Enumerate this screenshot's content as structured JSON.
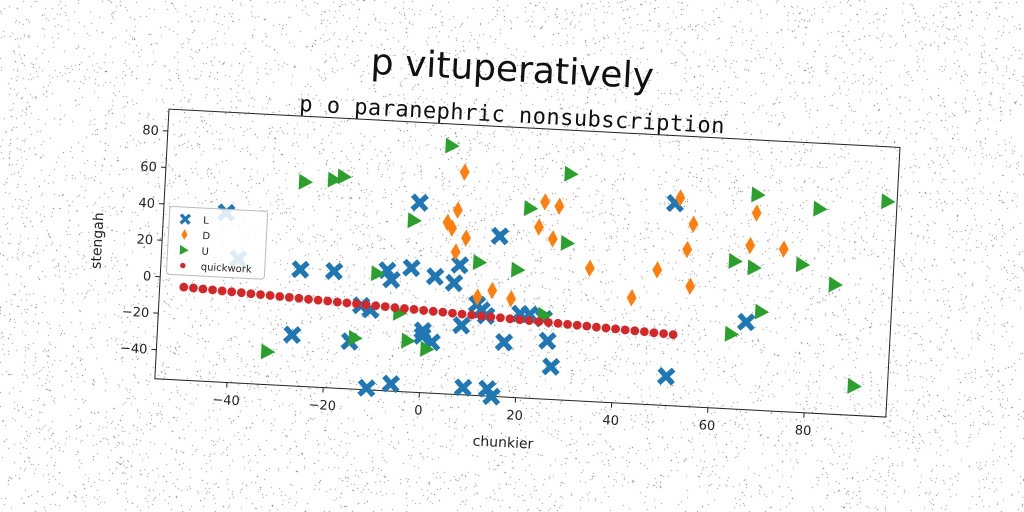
{
  "chart_data": {
    "type": "scatter",
    "title": "p vituperatively",
    "subtitle": "p o paranephric nonsubscription",
    "xlabel": "chunkier",
    "ylabel": "stengah",
    "xlim": [
      -55,
      97
    ],
    "ylim": [
      -56,
      92
    ],
    "xticks": [
      -40,
      -20,
      0,
      20,
      40,
      60,
      80
    ],
    "yticks": [
      -40,
      -20,
      0,
      20,
      40,
      60,
      80
    ],
    "grid": false,
    "legend": "upper-left",
    "series": [
      {
        "name": "L",
        "marker": "x",
        "color": "#1f77b4",
        "points": [
          [
            -42,
            37
          ],
          [
            -39,
            12
          ],
          [
            -26,
            8
          ],
          [
            -19,
            8
          ],
          [
            -13,
            -10
          ],
          [
            -15,
            -30
          ],
          [
            -11,
            -12
          ],
          [
            -8,
            10
          ],
          [
            -7,
            5
          ],
          [
            -3,
            12
          ],
          [
            -2,
            48
          ],
          [
            0,
            -25
          ],
          [
            0,
            -22
          ],
          [
            2,
            -28
          ],
          [
            2,
            8
          ],
          [
            6,
            5
          ],
          [
            7,
            15
          ],
          [
            8,
            -18
          ],
          [
            9,
            -52
          ],
          [
            11,
            -6
          ],
          [
            12,
            -9
          ],
          [
            13,
            -12
          ],
          [
            14,
            -52
          ],
          [
            15,
            -56
          ],
          [
            15,
            32
          ],
          [
            17,
            -26
          ],
          [
            20,
            -10
          ],
          [
            22,
            -10
          ],
          [
            25,
            -12
          ],
          [
            26,
            -24
          ],
          [
            27,
            -38
          ],
          [
            51,
            55
          ],
          [
            51,
            -40
          ],
          [
            67,
            -8
          ],
          [
            -27,
            -28
          ],
          [
            -11,
            -55
          ],
          [
            -6,
            -52
          ]
        ]
      },
      {
        "name": "D",
        "marker": "diamond",
        "color": "#ff7f0e",
        "points": [
          [
            4,
            38
          ],
          [
            5,
            35
          ],
          [
            6,
            45
          ],
          [
            7,
            66
          ],
          [
            8,
            30
          ],
          [
            6,
            22
          ],
          [
            11,
            -2
          ],
          [
            14,
            2
          ],
          [
            18,
            -2
          ],
          [
            23,
            38
          ],
          [
            24,
            52
          ],
          [
            26,
            32
          ],
          [
            27,
            50
          ],
          [
            34,
            17
          ],
          [
            43,
            2
          ],
          [
            48,
            18
          ],
          [
            52,
            58
          ],
          [
            54,
            30
          ],
          [
            55,
            10
          ],
          [
            55,
            44
          ],
          [
            67,
            34
          ],
          [
            68,
            52
          ],
          [
            74,
            33
          ]
        ]
      },
      {
        "name": "U",
        "marker": "triangle-right",
        "color": "#2ca02c",
        "points": [
          [
            -32,
            -38
          ],
          [
            -26,
            56
          ],
          [
            -20,
            58
          ],
          [
            -18,
            60
          ],
          [
            -14,
            -28
          ],
          [
            -10,
            8
          ],
          [
            -5,
            -13
          ],
          [
            -3,
            38
          ],
          [
            -3,
            -28
          ],
          [
            1,
            -32
          ],
          [
            4,
            80
          ],
          [
            11,
            17
          ],
          [
            19,
            14
          ],
          [
            21,
            48
          ],
          [
            25,
            -10
          ],
          [
            29,
            30
          ],
          [
            29,
            68
          ],
          [
            64,
            25
          ],
          [
            64,
            -15
          ],
          [
            68,
            62
          ],
          [
            68,
            22
          ],
          [
            70,
            -2
          ],
          [
            78,
            25
          ],
          [
            81,
            56
          ],
          [
            85,
            15
          ],
          [
            90,
            -40
          ],
          [
            95,
            62
          ]
        ]
      },
      {
        "name": "quickwork",
        "marker": "circle",
        "color": "#d62728",
        "points": [
          [
            -50,
            -5
          ],
          [
            -48,
            -5.2
          ],
          [
            -46,
            -5.5
          ],
          [
            -44,
            -5.7
          ],
          [
            -42,
            -6
          ],
          [
            -40,
            -6.2
          ],
          [
            -38,
            -6.4
          ],
          [
            -36,
            -6.7
          ],
          [
            -34,
            -6.9
          ],
          [
            -32,
            -7.1
          ],
          [
            -30,
            -7.4
          ],
          [
            -28,
            -7.6
          ],
          [
            -26,
            -7.8
          ],
          [
            -24,
            -8.1
          ],
          [
            -22,
            -8.3
          ],
          [
            -20,
            -8.5
          ],
          [
            -18,
            -8.8
          ],
          [
            -16,
            -9
          ],
          [
            -14,
            -9.2
          ],
          [
            -12,
            -9.5
          ],
          [
            -10,
            -9.7
          ],
          [
            -8,
            -9.9
          ],
          [
            -6,
            -10.2
          ],
          [
            -4,
            -10.4
          ],
          [
            -2,
            -10.6
          ],
          [
            0,
            -10.9
          ],
          [
            2,
            -11.1
          ],
          [
            4,
            -11.3
          ],
          [
            6,
            -11.6
          ],
          [
            8,
            -11.8
          ],
          [
            10,
            -12
          ],
          [
            12,
            -12.3
          ],
          [
            14,
            -12.5
          ],
          [
            16,
            -12.7
          ],
          [
            18,
            -13
          ],
          [
            20,
            -13.2
          ],
          [
            22,
            -13.4
          ],
          [
            24,
            -13.7
          ],
          [
            26,
            -13.9
          ],
          [
            28,
            -14.1
          ],
          [
            30,
            -14.4
          ],
          [
            32,
            -14.6
          ],
          [
            34,
            -14.8
          ],
          [
            36,
            -15.1
          ],
          [
            38,
            -15.3
          ],
          [
            40,
            -15.5
          ],
          [
            42,
            -15.8
          ],
          [
            44,
            -16
          ],
          [
            46,
            -16.2
          ],
          [
            48,
            -16.5
          ],
          [
            50,
            -16.7
          ],
          [
            52,
            -17
          ]
        ]
      }
    ]
  }
}
